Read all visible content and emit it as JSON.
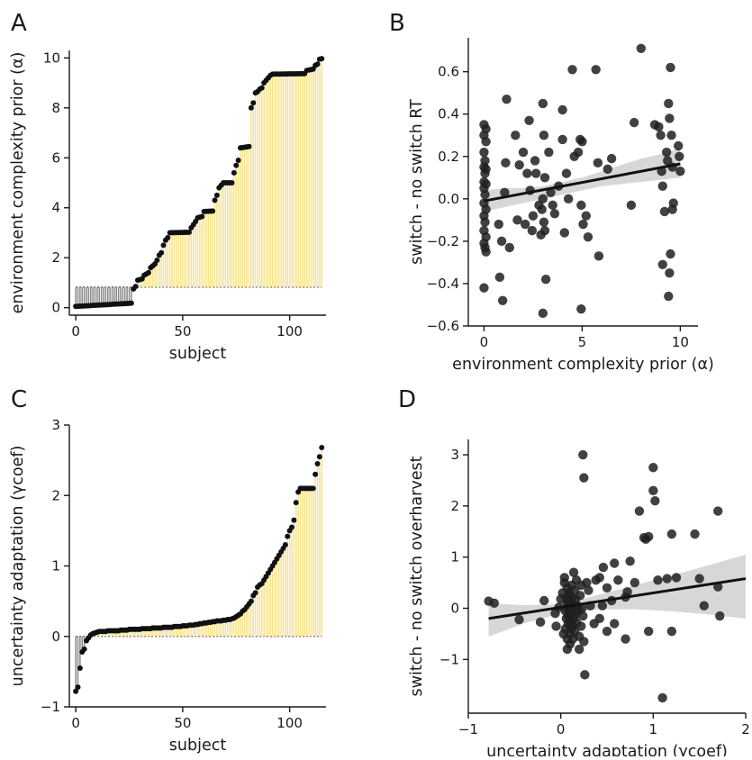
{
  "chart_data": [
    {
      "panel": "A",
      "type": "bar",
      "xlabel": "subject",
      "ylabel": "environment complexity prior (α)",
      "xlim": [
        -3,
        117
      ],
      "ylim": [
        -0.3,
        10.3
      ],
      "xticks": [
        0,
        50,
        100
      ],
      "yticks": [
        0,
        2,
        4,
        6,
        8,
        10
      ],
      "baseline": 0.82,
      "above_color": "#f7e38c",
      "below_color": "#8a8a8a",
      "segments": [
        {
          "from": 0,
          "to": 26,
          "start": 0.05,
          "end": 0.18
        },
        {
          "from": 27,
          "to": 28,
          "start": 0.75,
          "end": 0.85
        },
        {
          "from": 29,
          "to": 31,
          "start": 1.1,
          "end": 1.15
        },
        {
          "from": 32,
          "to": 34,
          "start": 1.3,
          "end": 1.4
        },
        {
          "from": 35,
          "to": 37,
          "start": 1.6,
          "end": 1.75
        },
        {
          "from": 38,
          "to": 39,
          "start": 1.9,
          "end": 2.1
        },
        {
          "from": 40,
          "to": 40,
          "start": 2.2,
          "end": 2.2
        },
        {
          "from": 41,
          "to": 42,
          "start": 2.5,
          "end": 2.7
        },
        {
          "from": 43,
          "to": 43,
          "start": 2.8,
          "end": 2.8
        },
        {
          "from": 44,
          "to": 53,
          "start": 3.0,
          "end": 3.02
        },
        {
          "from": 54,
          "to": 56,
          "start": 3.2,
          "end": 3.45
        },
        {
          "from": 57,
          "to": 59,
          "start": 3.6,
          "end": 3.65
        },
        {
          "from": 60,
          "to": 64,
          "start": 3.85,
          "end": 3.87
        },
        {
          "from": 65,
          "to": 66,
          "start": 4.3,
          "end": 4.5
        },
        {
          "from": 67,
          "to": 68,
          "start": 4.8,
          "end": 4.9
        },
        {
          "from": 69,
          "to": 73,
          "start": 5.0,
          "end": 5.0
        },
        {
          "from": 74,
          "to": 74,
          "start": 5.4,
          "end": 5.4
        },
        {
          "from": 75,
          "to": 76,
          "start": 5.7,
          "end": 5.9
        },
        {
          "from": 77,
          "to": 81,
          "start": 6.4,
          "end": 6.45
        },
        {
          "from": 82,
          "to": 83,
          "start": 8.0,
          "end": 8.2
        },
        {
          "from": 84,
          "to": 85,
          "start": 8.6,
          "end": 8.65
        },
        {
          "from": 86,
          "to": 87,
          "start": 8.75,
          "end": 8.8
        },
        {
          "from": 88,
          "to": 89,
          "start": 9.0,
          "end": 9.1
        },
        {
          "from": 90,
          "to": 91,
          "start": 9.2,
          "end": 9.3
        },
        {
          "from": 92,
          "to": 107,
          "start": 9.35,
          "end": 9.37
        },
        {
          "from": 108,
          "to": 111,
          "start": 9.5,
          "end": 9.55
        },
        {
          "from": 112,
          "to": 113,
          "start": 9.7,
          "end": 9.75
        },
        {
          "from": 114,
          "to": 115,
          "start": 9.95,
          "end": 9.97
        }
      ]
    },
    {
      "panel": "B",
      "type": "scatter",
      "xlabel": "environment complexity prior (α)",
      "ylabel": "switch - no switch RT",
      "xlim": [
        -0.8,
        10.9
      ],
      "ylim": [
        -0.6,
        0.76
      ],
      "xticks": [
        0,
        5,
        10
      ],
      "yticks": [
        -0.6,
        -0.4,
        -0.2,
        0.0,
        0.2,
        0.4,
        0.6
      ],
      "ytick_labels": [
        "−0.6",
        "−0.4",
        "−0.2",
        "0.0",
        "0.2",
        "0.4",
        "0.6"
      ],
      "points": [
        [
          0.0,
          0.35
        ],
        [
          0.1,
          0.33
        ],
        [
          0.0,
          0.3
        ],
        [
          0.1,
          0.27
        ],
        [
          0.0,
          0.22
        ],
        [
          0.05,
          0.18
        ],
        [
          0.0,
          0.15
        ],
        [
          0.1,
          0.14
        ],
        [
          0.05,
          0.12
        ],
        [
          0.0,
          0.08
        ],
        [
          0.1,
          0.07
        ],
        [
          0.0,
          0.05
        ],
        [
          0.05,
          0.02
        ],
        [
          0.0,
          -0.02
        ],
        [
          0.1,
          -0.05
        ],
        [
          0.0,
          -0.08
        ],
        [
          0.05,
          -0.11
        ],
        [
          0.0,
          -0.15
        ],
        [
          0.1,
          -0.18
        ],
        [
          0.0,
          -0.21
        ],
        [
          0.05,
          -0.23
        ],
        [
          0.1,
          -0.25
        ],
        [
          0.0,
          -0.42
        ],
        [
          0.8,
          -0.37
        ],
        [
          0.95,
          -0.48
        ],
        [
          0.75,
          -0.12
        ],
        [
          0.9,
          -0.2
        ],
        [
          1.15,
          0.47
        ],
        [
          1.1,
          0.17
        ],
        [
          1.05,
          0.03
        ],
        [
          1.3,
          -0.23
        ],
        [
          1.6,
          0.3
        ],
        [
          1.7,
          -0.1
        ],
        [
          1.8,
          0.16
        ],
        [
          2.0,
          0.22
        ],
        [
          2.1,
          -0.12
        ],
        [
          2.2,
          0.12
        ],
        [
          2.3,
          0.37
        ],
        [
          2.35,
          0.04
        ],
        [
          2.45,
          -0.15
        ],
        [
          2.5,
          -0.08
        ],
        [
          2.6,
          0.18
        ],
        [
          2.65,
          0.12
        ],
        [
          2.8,
          -0.03
        ],
        [
          2.9,
          -0.17
        ],
        [
          2.95,
          -0.05
        ],
        [
          3.0,
          0.45
        ],
        [
          3.05,
          0.3
        ],
        [
          3.1,
          0.1
        ],
        [
          3.0,
          0.0
        ],
        [
          3.05,
          -0.11
        ],
        [
          3.1,
          -0.15
        ],
        [
          3.15,
          -0.38
        ],
        [
          3.0,
          -0.54
        ],
        [
          3.3,
          0.22
        ],
        [
          3.4,
          0.03
        ],
        [
          3.5,
          -0.03
        ],
        [
          3.6,
          -0.07
        ],
        [
          3.8,
          0.06
        ],
        [
          4.0,
          0.42
        ],
        [
          4.0,
          0.28
        ],
        [
          4.1,
          -0.16
        ],
        [
          4.2,
          0.12
        ],
        [
          4.3,
          0.0
        ],
        [
          4.5,
          0.61
        ],
        [
          4.6,
          0.2
        ],
        [
          4.8,
          0.22
        ],
        [
          4.9,
          0.28
        ],
        [
          4.95,
          -0.03
        ],
        [
          5.0,
          0.27
        ],
        [
          5.05,
          -0.12
        ],
        [
          5.2,
          -0.08
        ],
        [
          5.3,
          -0.18
        ],
        [
          4.95,
          -0.52
        ],
        [
          5.7,
          0.61
        ],
        [
          5.8,
          0.17
        ],
        [
          5.85,
          -0.27
        ],
        [
          6.3,
          0.14
        ],
        [
          6.5,
          0.19
        ],
        [
          7.5,
          -0.03
        ],
        [
          7.65,
          0.36
        ],
        [
          8.0,
          0.71
        ],
        [
          8.7,
          0.35
        ],
        [
          8.9,
          0.34
        ],
        [
          9.0,
          0.3
        ],
        [
          9.05,
          0.13
        ],
        [
          9.1,
          0.06
        ],
        [
          9.2,
          -0.06
        ],
        [
          9.1,
          -0.31
        ],
        [
          9.3,
          0.22
        ],
        [
          9.35,
          0.18
        ],
        [
          9.4,
          0.45
        ],
        [
          9.45,
          0.38
        ],
        [
          9.5,
          0.62
        ],
        [
          9.55,
          0.3
        ],
        [
          9.6,
          0.15
        ],
        [
          9.5,
          -0.26
        ],
        [
          9.45,
          -0.35
        ],
        [
          9.4,
          -0.46
        ],
        [
          9.6,
          -0.05
        ],
        [
          9.65,
          -0.02
        ],
        [
          9.9,
          0.25
        ],
        [
          9.95,
          0.2
        ],
        [
          10.0,
          0.13
        ]
      ],
      "regression": {
        "x": [
          0,
          10
        ],
        "y": [
          -0.01,
          0.165
        ]
      },
      "ci_band": {
        "x": [
          0,
          1,
          2,
          3,
          4,
          5,
          6,
          7,
          8,
          9,
          10
        ],
        "lower": [
          -0.06,
          -0.04,
          -0.02,
          0.0,
          0.02,
          0.04,
          0.06,
          0.07,
          0.08,
          0.09,
          0.1
        ],
        "upper": [
          0.04,
          0.05,
          0.05,
          0.06,
          0.08,
          0.1,
          0.13,
          0.16,
          0.19,
          0.21,
          0.24
        ]
      }
    },
    {
      "panel": "C",
      "type": "bar",
      "xlabel": "subject",
      "ylabel": "uncertainty adaptation (γcoef)",
      "xlim": [
        -3,
        117
      ],
      "ylim": [
        -1.0,
        3.0
      ],
      "xticks": [
        0,
        50,
        100
      ],
      "yticks": [
        -1,
        0,
        1,
        2,
        3
      ],
      "ytick_labels": [
        "−1",
        "0",
        "1",
        "2",
        "3"
      ],
      "baseline": 0.0,
      "above_color": "#f7e38c",
      "below_color": "#8a8a8a",
      "values": [
        -0.78,
        -0.72,
        -0.45,
        -0.22,
        -0.18,
        -0.06,
        -0.02,
        0.02,
        0.04,
        0.05,
        0.06,
        0.07,
        0.07,
        0.07,
        0.07,
        0.08,
        0.08,
        0.08,
        0.08,
        0.08,
        0.08,
        0.09,
        0.09,
        0.09,
        0.09,
        0.1,
        0.1,
        0.1,
        0.1,
        0.1,
        0.1,
        0.11,
        0.11,
        0.11,
        0.11,
        0.11,
        0.12,
        0.12,
        0.12,
        0.12,
        0.12,
        0.13,
        0.13,
        0.13,
        0.13,
        0.13,
        0.14,
        0.14,
        0.14,
        0.14,
        0.15,
        0.15,
        0.15,
        0.16,
        0.16,
        0.16,
        0.17,
        0.17,
        0.18,
        0.18,
        0.19,
        0.19,
        0.2,
        0.2,
        0.21,
        0.21,
        0.22,
        0.22,
        0.22,
        0.23,
        0.23,
        0.24,
        0.24,
        0.25,
        0.26,
        0.28,
        0.3,
        0.32,
        0.36,
        0.38,
        0.42,
        0.46,
        0.5,
        0.58,
        0.62,
        0.7,
        0.73,
        0.75,
        0.8,
        0.85,
        0.9,
        0.95,
        1.0,
        1.05,
        1.1,
        1.15,
        1.2,
        1.25,
        1.3,
        1.42,
        1.5,
        1.55,
        1.65,
        1.9,
        2.05,
        2.1,
        2.1,
        2.1,
        2.1,
        2.1,
        2.1,
        2.1,
        2.3,
        2.45,
        2.55,
        2.68
      ]
    },
    {
      "panel": "D",
      "type": "scatter",
      "xlabel": "uncertainty adaptation (γcoef)",
      "ylabel": "switch - no switch overharvest",
      "xlim": [
        -1.0,
        2.0
      ],
      "ylim": [
        -2.05,
        3.3
      ],
      "xticks": [
        -1,
        0,
        1,
        2
      ],
      "xtick_labels": [
        "−1",
        "0",
        "1",
        "2"
      ],
      "yticks": [
        -1,
        0,
        1,
        2,
        3
      ],
      "ytick_labels": [
        "−1",
        "0",
        "1",
        "2",
        "3"
      ],
      "points": [
        [
          -0.78,
          0.14
        ],
        [
          -0.72,
          0.1
        ],
        [
          -0.45,
          -0.22
        ],
        [
          -0.22,
          -0.27
        ],
        [
          -0.18,
          0.15
        ],
        [
          -0.06,
          -0.1
        ],
        [
          -0.02,
          0.02
        ],
        [
          0.02,
          0.3
        ],
        [
          0.04,
          0.5
        ],
        [
          0.05,
          -0.4
        ],
        [
          0.05,
          -0.05
        ],
        [
          0.06,
          0.2
        ],
        [
          0.06,
          -0.2
        ],
        [
          0.07,
          0.4
        ],
        [
          0.07,
          0.1
        ],
        [
          0.07,
          -0.6
        ],
        [
          0.07,
          -0.8
        ],
        [
          0.08,
          -0.3
        ],
        [
          0.08,
          0.15
        ],
        [
          0.08,
          -0.15
        ],
        [
          0.08,
          0.0
        ],
        [
          0.09,
          -0.1
        ],
        [
          0.09,
          0.3
        ],
        [
          0.09,
          0.05
        ],
        [
          0.1,
          -0.5
        ],
        [
          0.1,
          -0.7
        ],
        [
          0.1,
          0.25
        ],
        [
          0.1,
          -0.25
        ],
        [
          0.11,
          0.1
        ],
        [
          0.11,
          -0.4
        ],
        [
          0.11,
          0.0
        ],
        [
          0.12,
          -0.08
        ],
        [
          0.12,
          0.45
        ],
        [
          0.12,
          0.2
        ],
        [
          0.13,
          -0.35
        ],
        [
          0.13,
          -0.6
        ],
        [
          0.13,
          0.05
        ],
        [
          0.14,
          -0.2
        ],
        [
          0.14,
          0.7
        ],
        [
          0.15,
          0.35
        ],
        [
          0.15,
          -0.45
        ],
        [
          0.16,
          0.18
        ],
        [
          0.16,
          -0.12
        ],
        [
          0.17,
          0.55
        ],
        [
          0.17,
          -0.28
        ],
        [
          0.18,
          0.05
        ],
        [
          0.19,
          -0.05
        ],
        [
          0.2,
          -0.55
        ],
        [
          0.2,
          -0.8
        ],
        [
          0.21,
          0.25
        ],
        [
          0.22,
          0.45
        ],
        [
          0.22,
          -0.35
        ],
        [
          0.23,
          0.0
        ],
        [
          0.24,
          -0.15
        ],
        [
          0.24,
          3.0
        ],
        [
          0.25,
          2.55
        ],
        [
          0.25,
          -0.65
        ],
        [
          0.26,
          -1.3
        ],
        [
          0.28,
          0.5
        ],
        [
          0.3,
          0.35
        ],
        [
          0.32,
          0.05
        ],
        [
          0.36,
          -0.3
        ],
        [
          0.38,
          0.55
        ],
        [
          0.42,
          0.6
        ],
        [
          0.42,
          -0.2
        ],
        [
          0.46,
          0.8
        ],
        [
          0.5,
          0.4
        ],
        [
          0.5,
          -0.45
        ],
        [
          0.58,
          0.88
        ],
        [
          0.58,
          -0.3
        ],
        [
          0.62,
          0.55
        ],
        [
          0.7,
          0.22
        ],
        [
          0.7,
          -0.6
        ],
        [
          0.75,
          0.92
        ],
        [
          0.8,
          0.5
        ],
        [
          0.85,
          1.9
        ],
        [
          0.9,
          1.38
        ],
        [
          0.92,
          1.35
        ],
        [
          0.95,
          -0.45
        ],
        [
          0.95,
          1.4
        ],
        [
          1.0,
          2.75
        ],
        [
          1.0,
          2.3
        ],
        [
          1.02,
          2.1
        ],
        [
          1.05,
          0.55
        ],
        [
          1.1,
          -1.75
        ],
        [
          1.15,
          0.58
        ],
        [
          1.2,
          1.45
        ],
        [
          1.2,
          -0.45
        ],
        [
          1.25,
          0.6
        ],
        [
          1.45,
          1.45
        ],
        [
          1.5,
          0.58
        ],
        [
          1.55,
          0.05
        ],
        [
          1.7,
          1.9
        ],
        [
          1.7,
          0.42
        ],
        [
          1.72,
          -0.15
        ],
        [
          0.72,
          0.32
        ],
        [
          0.55,
          0.15
        ],
        [
          0.45,
          0.05
        ],
        [
          -0.05,
          -0.35
        ],
        [
          0.0,
          0.18
        ],
        [
          0.03,
          -0.5
        ],
        [
          0.04,
          0.6
        ]
      ],
      "regression": {
        "x": [
          -0.78,
          2.0
        ],
        "y": [
          -0.2,
          0.58
        ]
      },
      "ci_band": {
        "x": [
          -0.78,
          -0.4,
          0.0,
          0.4,
          0.8,
          1.2,
          1.6,
          2.0
        ],
        "lower": [
          -0.55,
          -0.3,
          -0.1,
          -0.02,
          -0.02,
          -0.06,
          -0.12,
          -0.2
        ],
        "upper": [
          0.1,
          0.06,
          0.08,
          0.26,
          0.45,
          0.64,
          0.84,
          1.05
        ]
      }
    }
  ]
}
